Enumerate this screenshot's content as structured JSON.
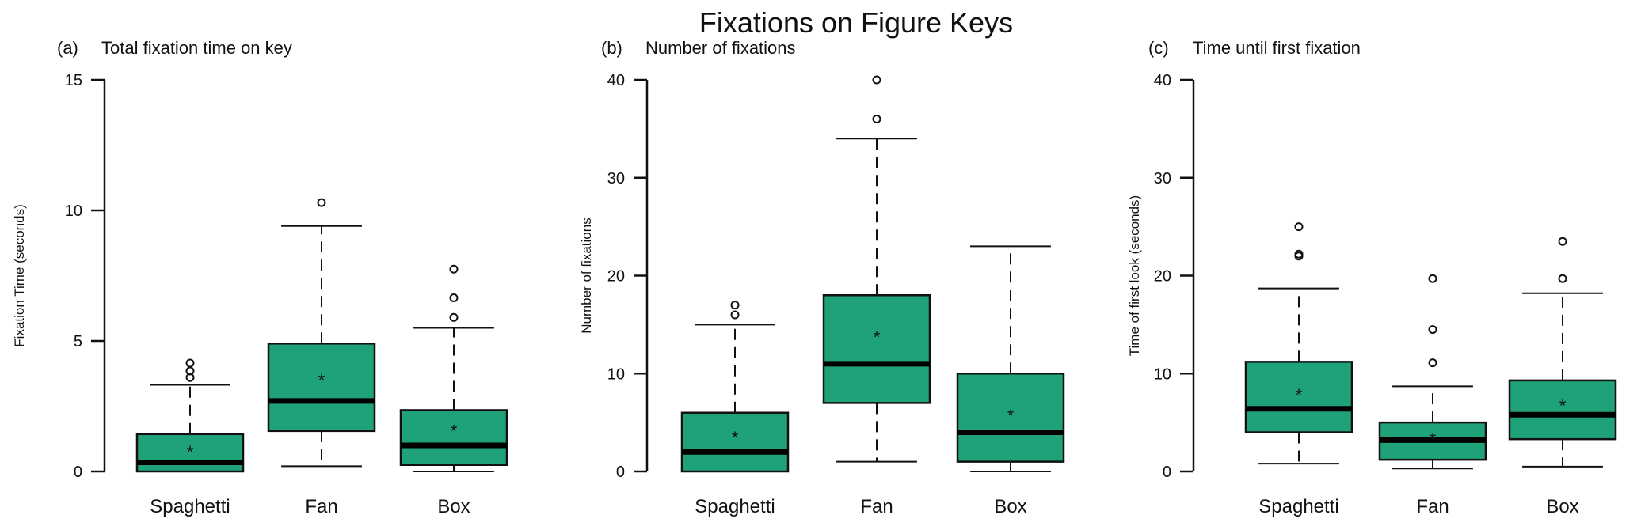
{
  "title": "Fixations on Figure Keys",
  "box_color": "#1fa27a",
  "chart_data": [
    {
      "type": "boxplot",
      "panel_label": "(a)",
      "title": "Total fixation time on key",
      "ylabel": "Fixation Time (seconds)",
      "ylim": [
        0,
        15
      ],
      "yticks": [
        0,
        5,
        10,
        15
      ],
      "categories": [
        "Spaghetti",
        "Fan",
        "Box"
      ],
      "boxes": [
        {
          "whisker_low": 0,
          "q1": 0,
          "median": 0.35,
          "q3": 1.43,
          "whisker_high": 3.32,
          "mean": 0.85,
          "outliers": [
            3.6,
            3.85,
            4.15
          ]
        },
        {
          "whisker_low": 0.2,
          "q1": 1.55,
          "median": 2.7,
          "q3": 4.9,
          "whisker_high": 9.4,
          "mean": 3.6,
          "outliers": [
            10.3
          ]
        },
        {
          "whisker_low": 0,
          "q1": 0.25,
          "median": 1.0,
          "q3": 2.35,
          "whisker_high": 5.5,
          "mean": 1.65,
          "outliers": [
            5.9,
            6.65,
            7.75
          ]
        }
      ]
    },
    {
      "type": "boxplot",
      "panel_label": "(b)",
      "title": "Number of fixations",
      "ylabel": "Number of fixations",
      "ylim": [
        0,
        40
      ],
      "yticks": [
        0,
        10,
        20,
        30,
        40
      ],
      "categories": [
        "Spaghetti",
        "Fan",
        "Box"
      ],
      "boxes": [
        {
          "whisker_low": 0,
          "q1": 0,
          "median": 2,
          "q3": 6,
          "whisker_high": 15,
          "mean": 3.7,
          "outliers": [
            16,
            17
          ]
        },
        {
          "whisker_low": 1,
          "q1": 7,
          "median": 11,
          "q3": 18,
          "whisker_high": 34,
          "mean": 14,
          "outliers": [
            36,
            40
          ]
        },
        {
          "whisker_low": 0,
          "q1": 1,
          "median": 4,
          "q3": 10,
          "whisker_high": 23,
          "mean": 6,
          "outliers": []
        }
      ]
    },
    {
      "type": "boxplot",
      "panel_label": "(c)",
      "title": "Time until first fixation",
      "ylabel": "Time of first look (seconds)",
      "ylim": [
        0,
        40
      ],
      "yticks": [
        0,
        10,
        20,
        30,
        40
      ],
      "categories": [
        "Spaghetti",
        "Fan",
        "Box"
      ],
      "boxes": [
        {
          "whisker_low": 0.8,
          "q1": 4,
          "median": 6.4,
          "q3": 11.2,
          "whisker_high": 18.7,
          "mean": 8.1,
          "outliers": [
            22,
            22.2,
            25
          ]
        },
        {
          "whisker_low": 0.3,
          "q1": 1.2,
          "median": 3.2,
          "q3": 5,
          "whisker_high": 8.7,
          "mean": 3.6,
          "outliers": [
            11.1,
            14.5,
            19.7
          ]
        },
        {
          "whisker_low": 0.5,
          "q1": 3.3,
          "median": 5.8,
          "q3": 9.3,
          "whisker_high": 18.2,
          "mean": 7,
          "outliers": [
            19.7,
            23.5
          ]
        }
      ]
    }
  ]
}
